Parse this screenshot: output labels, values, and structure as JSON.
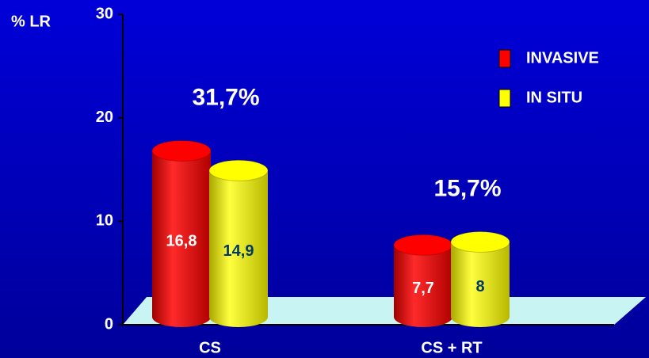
{
  "chart_data": {
    "type": "bar",
    "y_label": "% LR",
    "categories": [
      "CS",
      "CS + RT"
    ],
    "series": [
      {
        "name": "INVASIVE",
        "color": "#ff0000",
        "values": [
          16.8,
          7.7
        ],
        "value_labels": [
          "16,8",
          "7,7"
        ],
        "label_color": "#ffffff"
      },
      {
        "name": "IN SITU",
        "color": "#ffff00",
        "values": [
          14.9,
          8
        ],
        "value_labels": [
          "14,9",
          "8"
        ],
        "label_color": "#003a66"
      }
    ],
    "annotations": [
      "31,7%",
      "15,7%"
    ],
    "ylim": [
      0,
      30
    ],
    "yticks": [
      0,
      10,
      20,
      30
    ],
    "legend": "top-right"
  }
}
